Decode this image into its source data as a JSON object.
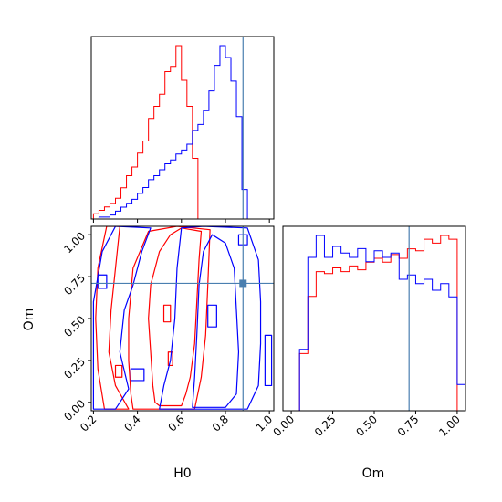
{
  "chart_data": {
    "type": "corner",
    "parameters": [
      "H0",
      "Om"
    ],
    "axis_labels": {
      "x_left": "H0",
      "x_right": "Om",
      "y_left": "Om"
    },
    "truth": {
      "H0": 0.88,
      "Om": 0.71
    },
    "truth_color": "#4a7fb0",
    "ranges": {
      "H0": [
        0.19,
        1.02
      ],
      "Om": [
        -0.05,
        1.05
      ]
    },
    "ticks": {
      "H0": [
        "0.2",
        "0.4",
        "0.6",
        "0.8",
        "1.0"
      ],
      "Om": [
        "0.00",
        "0.25",
        "0.50",
        "0.75",
        "1.00"
      ]
    },
    "series": [
      {
        "color": "#ff0000"
      },
      {
        "color": "#0000ff"
      }
    ],
    "hist_H0": {
      "bins_start": 0.2,
      "bin_width": 0.025,
      "red": [
        3,
        5,
        7,
        9,
        12,
        18,
        25,
        30,
        38,
        45,
        58,
        65,
        72,
        85,
        88,
        100,
        80,
        65,
        35,
        0,
        0,
        0,
        0,
        0,
        0,
        0,
        0,
        0,
        0,
        0,
        0,
        0
      ],
      "blue": [
        0,
        1,
        1,
        2,
        4,
        6,
        8,
        10,
        13,
        16,
        20,
        22,
        25,
        28,
        30,
        33,
        35,
        38,
        45,
        48,
        55,
        65,
        78,
        88,
        82,
        70,
        52,
        15,
        0,
        0,
        0,
        0
      ]
    },
    "hist_Om": {
      "bins_start": 0.0,
      "bin_width": 0.05,
      "red": [
        0,
        30,
        60,
        73,
        72,
        75,
        73,
        76,
        74,
        78,
        80,
        78,
        82,
        80,
        85,
        84,
        90,
        88,
        92,
        90,
        0
      ],
      "blue": [
        0,
        28,
        70,
        80,
        70,
        75,
        72,
        70,
        74,
        68,
        73,
        70,
        72,
        60,
        62,
        58,
        60,
        55,
        58,
        52,
        12
      ]
    },
    "contours": {
      "red": [
        [
          [
            0.5,
            -0.02
          ],
          [
            0.6,
            -0.02
          ],
          [
            0.62,
            0.05
          ],
          [
            0.64,
            0.15
          ],
          [
            0.66,
            0.35
          ],
          [
            0.67,
            0.6
          ],
          [
            0.68,
            0.85
          ],
          [
            0.69,
            1.02
          ],
          [
            0.6,
            1.04
          ],
          [
            0.55,
            1.0
          ],
          [
            0.5,
            0.9
          ],
          [
            0.46,
            0.7
          ],
          [
            0.45,
            0.5
          ],
          [
            0.46,
            0.3
          ],
          [
            0.47,
            0.1
          ],
          [
            0.48,
            0.0
          ]
        ],
        [
          [
            0.38,
            -0.04
          ],
          [
            0.66,
            -0.04
          ],
          [
            0.69,
            0.15
          ],
          [
            0.71,
            0.4
          ],
          [
            0.72,
            0.7
          ],
          [
            0.73,
            1.03
          ],
          [
            0.58,
            1.05
          ],
          [
            0.45,
            1.02
          ],
          [
            0.38,
            0.8
          ],
          [
            0.36,
            0.5
          ],
          [
            0.36,
            0.25
          ],
          [
            0.37,
            0.05
          ]
        ],
        [
          [
            0.25,
            -0.04
          ],
          [
            0.36,
            -0.04
          ],
          [
            0.3,
            0.1
          ],
          [
            0.27,
            0.3
          ],
          [
            0.28,
            0.55
          ],
          [
            0.3,
            0.8
          ],
          [
            0.32,
            1.05
          ],
          [
            0.26,
            1.05
          ],
          [
            0.22,
            0.8
          ],
          [
            0.21,
            0.5
          ],
          [
            0.22,
            0.2
          ]
        ],
        [
          [
            0.52,
            0.48
          ],
          [
            0.55,
            0.48
          ],
          [
            0.55,
            0.58
          ],
          [
            0.52,
            0.58
          ]
        ],
        [
          [
            0.54,
            0.22
          ],
          [
            0.56,
            0.22
          ],
          [
            0.56,
            0.3
          ],
          [
            0.54,
            0.3
          ]
        ],
        [
          [
            0.3,
            0.15
          ],
          [
            0.33,
            0.15
          ],
          [
            0.33,
            0.22
          ],
          [
            0.3,
            0.22
          ]
        ]
      ],
      "blue": [
        [
          [
            0.65,
            -0.03
          ],
          [
            0.8,
            -0.03
          ],
          [
            0.85,
            0.05
          ],
          [
            0.86,
            0.3
          ],
          [
            0.85,
            0.55
          ],
          [
            0.84,
            0.8
          ],
          [
            0.8,
            0.95
          ],
          [
            0.74,
            1.0
          ],
          [
            0.7,
            0.9
          ],
          [
            0.68,
            0.7
          ],
          [
            0.67,
            0.4
          ],
          [
            0.66,
            0.15
          ]
        ],
        [
          [
            0.5,
            -0.04
          ],
          [
            0.9,
            -0.04
          ],
          [
            0.95,
            0.1
          ],
          [
            0.96,
            0.35
          ],
          [
            0.96,
            0.6
          ],
          [
            0.95,
            0.85
          ],
          [
            0.9,
            1.04
          ],
          [
            0.7,
            1.05
          ],
          [
            0.6,
            1.04
          ],
          [
            0.58,
            0.8
          ],
          [
            0.57,
            0.5
          ],
          [
            0.55,
            0.25
          ],
          [
            0.52,
            0.1
          ]
        ],
        [
          [
            0.2,
            -0.04
          ],
          [
            0.3,
            -0.04
          ],
          [
            0.36,
            0.08
          ],
          [
            0.32,
            0.3
          ],
          [
            0.34,
            0.55
          ],
          [
            0.38,
            0.7
          ],
          [
            0.42,
            0.9
          ],
          [
            0.46,
            1.04
          ],
          [
            0.3,
            1.05
          ],
          [
            0.24,
            0.9
          ],
          [
            0.2,
            0.6
          ]
        ],
        [
          [
            0.37,
            0.13
          ],
          [
            0.43,
            0.13
          ],
          [
            0.43,
            0.2
          ],
          [
            0.37,
            0.2
          ]
        ],
        [
          [
            0.22,
            0.68
          ],
          [
            0.26,
            0.68
          ],
          [
            0.26,
            0.76
          ],
          [
            0.22,
            0.76
          ]
        ],
        [
          [
            0.72,
            0.45
          ],
          [
            0.76,
            0.45
          ],
          [
            0.76,
            0.58
          ],
          [
            0.72,
            0.58
          ]
        ],
        [
          [
            0.86,
            0.94
          ],
          [
            0.9,
            0.94
          ],
          [
            0.9,
            1.0
          ],
          [
            0.86,
            1.0
          ]
        ],
        [
          [
            0.98,
            0.1
          ],
          [
            1.01,
            0.1
          ],
          [
            1.01,
            0.4
          ],
          [
            0.98,
            0.4
          ]
        ]
      ]
    }
  }
}
